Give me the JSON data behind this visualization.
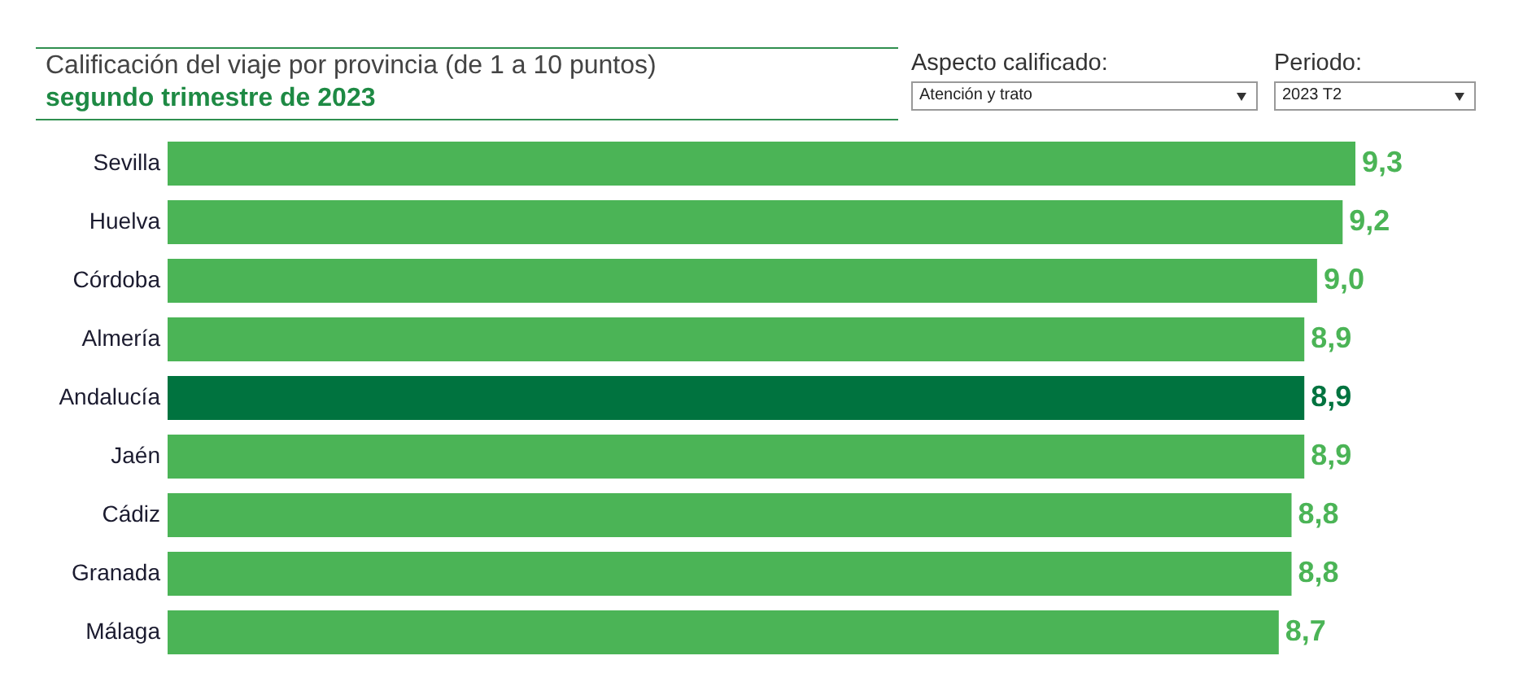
{
  "chart_data": {
    "type": "bar",
    "orientation": "horizontal",
    "title": "Calificación del viaje por provincia (de 1 a 10 puntos)",
    "subtitle": "segundo trimestre de 2023",
    "categories": [
      "Sevilla",
      "Huelva",
      "Córdoba",
      "Almería",
      "Andalucía",
      "Jaén",
      "Cádiz",
      "Granada",
      "Málaga"
    ],
    "values": [
      9.3,
      9.2,
      9.0,
      8.9,
      8.9,
      8.9,
      8.8,
      8.8,
      8.7
    ],
    "colors": [
      "#4bb456",
      "#4bb456",
      "#4bb456",
      "#4bb456",
      "#00733f",
      "#4bb456",
      "#4bb456",
      "#4bb456",
      "#4bb456"
    ],
    "value_labels": [
      "9,3",
      "9,2",
      "9,0",
      "8,9",
      "8,9",
      "8,9",
      "8,8",
      "8,8",
      "8,7"
    ],
    "tick_labels": "y",
    "annotations": [
      "Aspecto calificado:",
      "Atención y trato",
      "Periodo:",
      "2023 T2"
    ]
  }
}
